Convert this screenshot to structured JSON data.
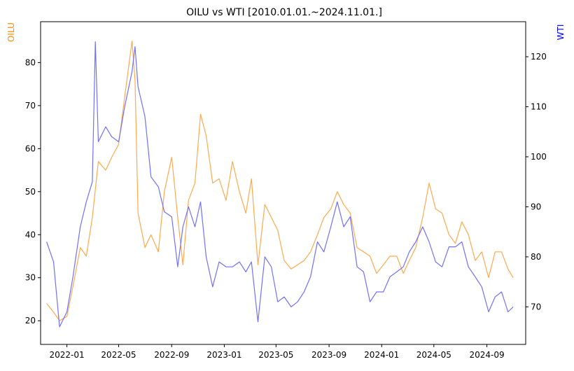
{
  "chart_data": {
    "type": "line",
    "title": "OILU vs WTI [2010.01.01.~2024.11.01.]",
    "xlabel": "",
    "x_ticks": [
      "2022-01",
      "2022-05",
      "2022-09",
      "2023-01",
      "2023-05",
      "2023-09",
      "2024-01",
      "2024-05",
      "2024-09"
    ],
    "x_range": [
      "2021-11-01",
      "2024-11-30"
    ],
    "grid": false,
    "axes": {
      "left": {
        "label": "OILU",
        "color": "#ff8c00",
        "ticks": [
          20,
          30,
          40,
          50,
          60,
          70,
          80
        ],
        "ylim": [
          14.5,
          89.5
        ]
      },
      "right": {
        "label": "WTI",
        "color": "#0000ff",
        "ticks": [
          70,
          80,
          90,
          100,
          110,
          120
        ],
        "ylim": [
          62.5,
          127
        ]
      }
    },
    "series": [
      {
        "name": "OILU",
        "axis": "left",
        "color": "#ffa94d",
        "x": [
          "2021-11-15",
          "2021-12-01",
          "2021-12-15",
          "2022-01-01",
          "2022-01-15",
          "2022-02-01",
          "2022-02-15",
          "2022-03-01",
          "2022-03-15",
          "2022-04-01",
          "2022-04-15",
          "2022-05-01",
          "2022-05-15",
          "2022-06-01",
          "2022-06-08",
          "2022-06-15",
          "2022-07-01",
          "2022-07-15",
          "2022-08-01",
          "2022-08-15",
          "2022-09-01",
          "2022-09-15",
          "2022-09-27",
          "2022-10-10",
          "2022-10-25",
          "2022-11-07",
          "2022-11-20",
          "2022-12-05",
          "2022-12-20",
          "2023-01-05",
          "2023-01-20",
          "2023-02-05",
          "2023-02-20",
          "2023-03-05",
          "2023-03-20",
          "2023-04-05",
          "2023-04-20",
          "2023-05-05",
          "2023-05-20",
          "2023-06-05",
          "2023-06-20",
          "2023-07-05",
          "2023-07-20",
          "2023-08-05",
          "2023-08-20",
          "2023-09-05",
          "2023-09-20",
          "2023-10-05",
          "2023-10-20",
          "2023-11-05",
          "2023-11-20",
          "2023-12-05",
          "2023-12-20",
          "2024-01-05",
          "2024-01-20",
          "2024-02-05",
          "2024-02-20",
          "2024-03-05",
          "2024-03-20",
          "2024-04-05",
          "2024-04-20",
          "2024-05-05",
          "2024-05-20",
          "2024-06-05",
          "2024-06-20",
          "2024-07-05",
          "2024-07-20",
          "2024-08-05",
          "2024-08-20",
          "2024-09-05",
          "2024-09-20",
          "2024-10-05",
          "2024-10-20",
          "2024-11-01"
        ],
        "values": [
          24,
          22,
          20,
          21,
          28,
          37,
          35,
          44,
          57,
          55,
          58,
          61,
          72,
          85,
          76,
          45,
          37,
          40,
          36,
          50,
          58,
          44,
          33,
          48,
          52,
          68,
          63,
          52,
          53,
          48,
          57,
          50,
          45,
          53,
          33,
          47,
          44,
          41,
          34,
          32,
          33,
          34,
          36,
          40,
          44,
          46,
          50,
          47,
          45,
          37,
          36,
          35,
          31,
          33,
          35,
          35,
          31,
          34,
          37,
          44,
          52,
          46,
          45,
          40,
          38,
          43,
          40,
          34,
          36,
          30,
          36,
          36,
          32,
          30
        ]
      },
      {
        "name": "WTI",
        "axis": "right",
        "color": "#7070ff",
        "x": [
          "2021-11-15",
          "2021-12-01",
          "2021-12-15",
          "2022-01-01",
          "2022-01-15",
          "2022-02-01",
          "2022-02-15",
          "2022-03-01",
          "2022-03-08",
          "2022-03-15",
          "2022-04-01",
          "2022-04-15",
          "2022-05-01",
          "2022-05-15",
          "2022-06-01",
          "2022-06-08",
          "2022-06-15",
          "2022-07-01",
          "2022-07-15",
          "2022-08-01",
          "2022-08-15",
          "2022-09-01",
          "2022-09-15",
          "2022-09-27",
          "2022-10-10",
          "2022-10-25",
          "2022-11-07",
          "2022-11-20",
          "2022-12-05",
          "2022-12-20",
          "2023-01-05",
          "2023-01-20",
          "2023-02-05",
          "2023-02-20",
          "2023-03-05",
          "2023-03-20",
          "2023-04-05",
          "2023-04-20",
          "2023-05-05",
          "2023-05-20",
          "2023-06-05",
          "2023-06-20",
          "2023-07-05",
          "2023-07-20",
          "2023-08-05",
          "2023-08-20",
          "2023-09-05",
          "2023-09-20",
          "2023-10-05",
          "2023-10-20",
          "2023-11-05",
          "2023-11-20",
          "2023-12-05",
          "2023-12-20",
          "2024-01-05",
          "2024-01-20",
          "2024-02-05",
          "2024-02-20",
          "2024-03-05",
          "2024-03-20",
          "2024-04-05",
          "2024-04-20",
          "2024-05-05",
          "2024-05-20",
          "2024-06-05",
          "2024-06-20",
          "2024-07-05",
          "2024-07-20",
          "2024-08-05",
          "2024-08-20",
          "2024-09-05",
          "2024-09-20",
          "2024-10-05",
          "2024-10-20",
          "2024-11-01"
        ],
        "values": [
          83,
          79,
          66,
          69,
          76,
          86,
          91,
          95,
          123,
          103,
          106,
          104,
          103,
          110,
          117,
          122,
          114,
          108,
          96,
          94,
          89,
          88,
          78,
          86,
          90,
          86,
          91,
          80,
          74,
          79,
          78,
          78,
          79,
          77,
          79,
          67,
          80,
          78,
          71,
          72,
          70,
          71,
          73,
          76,
          83,
          81,
          86,
          91,
          86,
          88,
          78,
          77,
          71,
          73,
          73,
          76,
          77,
          78,
          81,
          83,
          86,
          83,
          79,
          78,
          82,
          82,
          83,
          78,
          76,
          74,
          69,
          72,
          73,
          69,
          70
        ]
      }
    ]
  }
}
